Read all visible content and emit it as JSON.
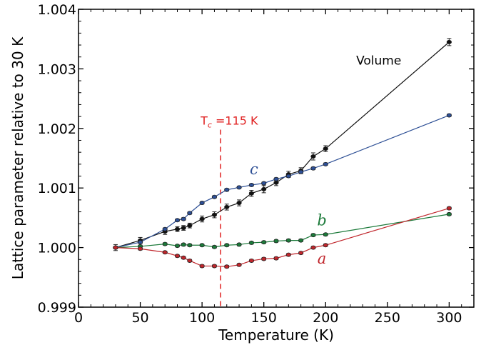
{
  "chart_data": {
    "type": "line",
    "xlabel": "Temperature (K)",
    "ylabel": "Lattice parameter relative to 30 K",
    "xlim": [
      0,
      320
    ],
    "ylim": [
      0.999,
      1.004
    ],
    "x_ticks": [
      0,
      50,
      100,
      150,
      200,
      250,
      300
    ],
    "x_tick_labels": [
      "0",
      "50",
      "100",
      "150",
      "200",
      "250",
      "300"
    ],
    "y_ticks": [
      0.999,
      1.0,
      1.001,
      1.002,
      1.003,
      1.004
    ],
    "y_tick_labels": [
      "0.999",
      "1.000",
      "1.001",
      "1.002",
      "1.003",
      "1.004"
    ],
    "grid": false,
    "series": [
      {
        "name": "Volume",
        "color": "#111111",
        "x": [
          30,
          50,
          70,
          80,
          85,
          90,
          100,
          110,
          120,
          130,
          140,
          150,
          160,
          170,
          180,
          190,
          200,
          300
        ],
        "y": [
          1.0,
          1.00012,
          1.00027,
          1.00031,
          1.00033,
          1.00037,
          1.00048,
          1.00055,
          1.00068,
          1.00075,
          1.00091,
          1.00098,
          1.00109,
          1.00123,
          1.00129,
          1.00153,
          1.00166,
          1.00345
        ],
        "err": [
          5e-05,
          5e-05,
          5e-05,
          4e-05,
          4e-05,
          4e-05,
          5e-05,
          5e-05,
          5e-05,
          5e-05,
          5e-05,
          6e-05,
          5e-05,
          5e-05,
          5e-05,
          6e-05,
          5e-05,
          6e-05
        ]
      },
      {
        "name": "c",
        "color": "#2d4f95",
        "x": [
          30,
          50,
          70,
          80,
          85,
          90,
          100,
          110,
          120,
          130,
          140,
          150,
          160,
          170,
          180,
          190,
          200,
          300
        ],
        "y": [
          1.0,
          1.00009,
          1.00031,
          1.00046,
          1.00048,
          1.00058,
          1.00075,
          1.00085,
          1.00097,
          1.00101,
          1.00105,
          1.00108,
          1.00115,
          1.0012,
          1.00127,
          1.00133,
          1.0014,
          1.00222
        ],
        "err": [
          2e-05,
          2e-05,
          2e-05,
          2e-05,
          2e-05,
          2e-05,
          2e-05,
          2e-05,
          2e-05,
          2e-05,
          2e-05,
          2e-05,
          2e-05,
          2e-05,
          2e-05,
          2e-05,
          2e-05,
          2e-05
        ]
      },
      {
        "name": "b",
        "color": "#1c7a3a",
        "x": [
          30,
          50,
          70,
          80,
          85,
          90,
          100,
          110,
          120,
          130,
          140,
          150,
          160,
          170,
          180,
          190,
          200,
          300
        ],
        "y": [
          1.0,
          1.00002,
          1.00006,
          1.00003,
          1.00005,
          1.00004,
          1.00004,
          1.00001,
          1.00004,
          1.00005,
          1.00008,
          1.00009,
          1.00011,
          1.00012,
          1.00012,
          1.00021,
          1.00022,
          1.00056
        ],
        "err": [
          2e-05,
          2e-05,
          2e-05,
          2e-05,
          2e-05,
          2e-05,
          2e-05,
          2e-05,
          2e-05,
          2e-05,
          2e-05,
          2e-05,
          2e-05,
          2e-05,
          2e-05,
          2e-05,
          2e-05,
          2e-05
        ]
      },
      {
        "name": "a",
        "color": "#c0262c",
        "x": [
          30,
          50,
          70,
          80,
          85,
          90,
          100,
          110,
          120,
          130,
          140,
          150,
          160,
          170,
          180,
          190,
          200,
          300
        ],
        "y": [
          1.0,
          0.99998,
          0.99992,
          0.99986,
          0.99983,
          0.99978,
          0.99969,
          0.99969,
          0.99968,
          0.99971,
          0.99978,
          0.99981,
          0.99982,
          0.99988,
          0.99991,
          1.0,
          1.00004,
          1.00066
        ],
        "err": [
          2e-05,
          2e-05,
          2e-05,
          2e-05,
          2e-05,
          2e-05,
          2e-05,
          2e-05,
          2e-05,
          2e-05,
          2e-05,
          2e-05,
          2e-05,
          2e-05,
          2e-05,
          2e-05,
          2e-05,
          2e-05
        ]
      }
    ],
    "annotations": [
      {
        "text": "Volume",
        "x": 243,
        "y": 1.00307,
        "color": "#000000",
        "style": "plain"
      },
      {
        "text": "c",
        "x": 142,
        "y": 1.00123,
        "color": "#2d4f95",
        "style": "italic"
      },
      {
        "text": "b",
        "x": 197,
        "y": 1.00037,
        "color": "#1c7a3a",
        "style": "italic"
      },
      {
        "text": "a",
        "x": 197,
        "y": 0.99973,
        "color": "#c0262c",
        "style": "italic"
      }
    ],
    "tc_marker": {
      "x": 115,
      "y_top": 1.00198,
      "label": "T",
      "label_sub": "c",
      "label_rest": " =115 K",
      "color": "#e02020"
    }
  }
}
